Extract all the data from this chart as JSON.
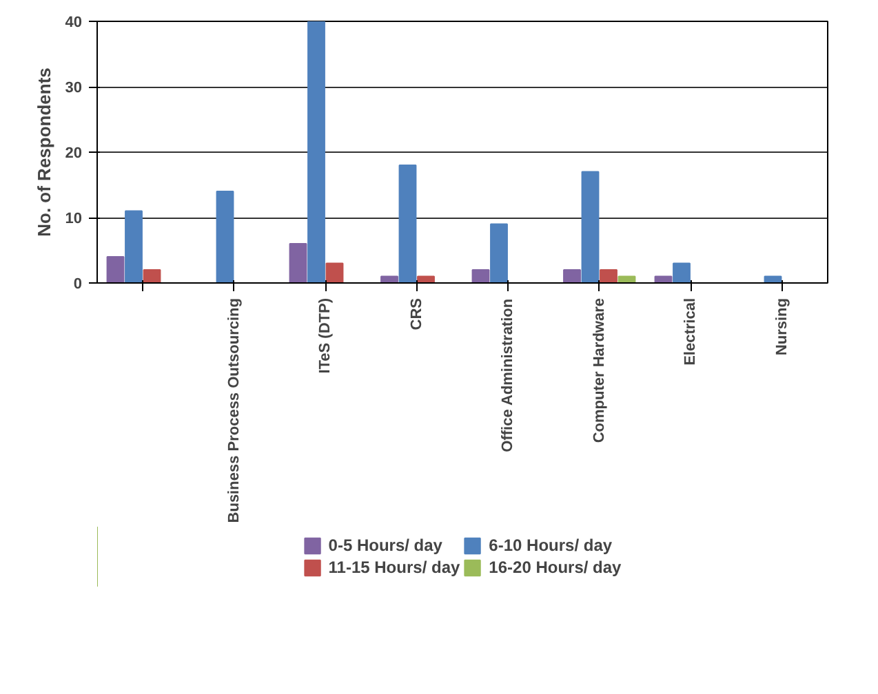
{
  "chart_data": {
    "type": "bar",
    "ylabel": "No. of Respondents",
    "categories": [
      null,
      "Business Process Outsourcing",
      "ITeS (DTP)",
      "CRS",
      "Office Administration",
      "Computer Hardware",
      "Electrical",
      "Nursing"
    ],
    "series": [
      {
        "name": "0-5 Hours/ day",
        "color": "#8064a2",
        "values": [
          4,
          0,
          6,
          1,
          2,
          2,
          1,
          0
        ]
      },
      {
        "name": "6-10 Hours/ day",
        "color": "#4f81bd",
        "values": [
          11,
          14,
          40,
          18,
          9,
          17,
          3,
          1
        ]
      },
      {
        "name": "11-15 Hours/ day",
        "color": "#c0504d",
        "values": [
          2,
          0,
          3,
          1,
          0,
          2,
          0,
          0
        ]
      },
      {
        "name": "16-20 Hours/ day",
        "color": "#9bbb59",
        "values": [
          0,
          0,
          0,
          0,
          0,
          1,
          0,
          0
        ]
      }
    ],
    "ylim": [
      0,
      40
    ],
    "yticks": [
      0,
      10,
      20,
      30,
      40
    ],
    "grid": "y",
    "legend": "bottom"
  }
}
